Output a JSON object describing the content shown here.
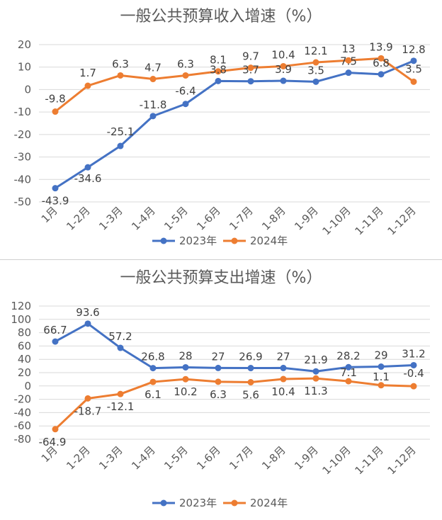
{
  "colors": {
    "series_2023": "#4472c4",
    "series_2024": "#ed7d31",
    "grid": "#d9d9d9",
    "text": "#595959"
  },
  "chart_data": [
    {
      "type": "line",
      "title": "一般公共预算收入增速（%）",
      "categories": [
        "1月",
        "1-2月",
        "1-3月",
        "1-4月",
        "1-5月",
        "1-6月",
        "1-7月",
        "1-8月",
        "1-9月",
        "1-10月",
        "1-11月",
        "1-12月"
      ],
      "series": [
        {
          "name": "2023年",
          "values": [
            -43.9,
            -34.6,
            -25.1,
            -11.8,
            -6.4,
            3.8,
            3.7,
            3.9,
            3.5,
            7.5,
            6.8,
            12.8
          ]
        },
        {
          "name": "2024年",
          "values": [
            -9.8,
            1.7,
            6.3,
            4.7,
            6.3,
            8.1,
            9.7,
            10.4,
            12.1,
            13,
            13.9,
            3.5
          ]
        }
      ],
      "ylim": [
        -50,
        20
      ],
      "yticks": [
        -50,
        -40,
        -30,
        -20,
        -10,
        0,
        10,
        20
      ],
      "grid": true,
      "legend": "bottom"
    },
    {
      "type": "line",
      "title": "一般公共预算支出增速（%）",
      "categories": [
        "1月",
        "1-2月",
        "1-3月",
        "1-4月",
        "1-5月",
        "1-6月",
        "1-7月",
        "1-8月",
        "1-9月",
        "1-10月",
        "1-11月",
        "1-12月"
      ],
      "series": [
        {
          "name": "2023年",
          "values": [
            66.7,
            93.6,
            57.2,
            26.8,
            28,
            27,
            26.9,
            27,
            21.9,
            28.2,
            29,
            31.2
          ]
        },
        {
          "name": "2024年",
          "values": [
            -64.9,
            -18.7,
            -12.1,
            6.1,
            10.2,
            6.3,
            5.6,
            10.4,
            11.3,
            7.1,
            1.1,
            -0.4
          ]
        }
      ],
      "ylim": [
        -80,
        120
      ],
      "yticks": [
        -80,
        -60,
        -40,
        -20,
        0,
        20,
        40,
        60,
        80,
        100,
        120
      ],
      "grid": true,
      "legend": "bottom"
    }
  ]
}
